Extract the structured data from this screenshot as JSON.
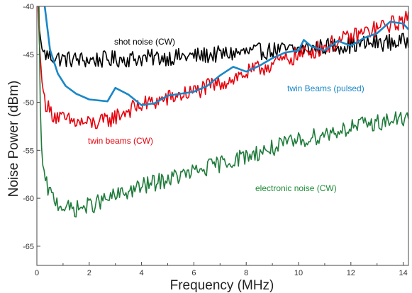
{
  "chart_data": {
    "type": "line",
    "xlabel": "Frequency (MHz)",
    "ylabel": "Noise Power (dBm)",
    "xlim": [
      0,
      14.2
    ],
    "ylim": [
      -67,
      -40
    ],
    "x_ticks": [
      0,
      2,
      4,
      6,
      8,
      10,
      12,
      14
    ],
    "y_ticks": [
      -40,
      -45,
      -50,
      -55,
      -60,
      -65
    ],
    "grid": false,
    "legend": "none (inline labels)",
    "series": [
      {
        "name": "shot noise (CW)",
        "color": "#000000",
        "noise_amplitude_db": 0.9,
        "x": [
          0.05,
          0.1,
          0.2,
          0.3,
          0.5,
          1,
          2,
          3,
          4,
          5,
          6,
          7,
          8,
          9,
          10,
          11,
          12,
          13,
          14,
          14.2
        ],
        "y": [
          -40,
          -42.5,
          -44.5,
          -45,
          -45.2,
          -45.5,
          -45.6,
          -45.5,
          -45.4,
          -45.3,
          -45.2,
          -45,
          -44.8,
          -44.6,
          -44.5,
          -44.2,
          -44,
          -43.8,
          -43.7,
          -43.6
        ]
      },
      {
        "name": "twin beams (CW)",
        "color": "#e8000b",
        "noise_amplitude_db": 0.9,
        "x": [
          0.05,
          0.1,
          0.2,
          0.3,
          0.5,
          1,
          1.5,
          2,
          2.5,
          3,
          3.5,
          4,
          5,
          6,
          7,
          8,
          9,
          10,
          11,
          12,
          13,
          14,
          14.2
        ],
        "y": [
          -40,
          -44,
          -48,
          -49.8,
          -51,
          -51.8,
          -52.1,
          -52.2,
          -52.1,
          -51.5,
          -50.8,
          -50.3,
          -49.6,
          -48.9,
          -48,
          -47,
          -46,
          -45.1,
          -44.2,
          -43.2,
          -42.3,
          -41.5,
          -41.2
        ]
      },
      {
        "name": "twin Beams (pulsed)",
        "color": "#1a87c8",
        "noise_amplitude_db": 0,
        "x": [
          0.3,
          0.5,
          0.8,
          1.1,
          1.5,
          2.0,
          2.7,
          3.0,
          3.5,
          4.0,
          4.5,
          5.0,
          5.5,
          6.0,
          6.5,
          7.0,
          7.5,
          8.0,
          8.5,
          9.0,
          9.5,
          10.0,
          10.2,
          10.5,
          11.0,
          11.5,
          12.0,
          12.5,
          13.0,
          13.5,
          14.0,
          14.2
        ],
        "y": [
          -40,
          -44.5,
          -47,
          -48.3,
          -49.1,
          -49.7,
          -49.9,
          -48.5,
          -49.2,
          -50.3,
          -50.1,
          -49.3,
          -49.1,
          -48.9,
          -48.3,
          -47.2,
          -46.3,
          -46.8,
          -46.2,
          -45.4,
          -44.8,
          -44.6,
          -43.5,
          -44.2,
          -44.6,
          -43.6,
          -44.1,
          -43.3,
          -42.8,
          -41.6,
          -41.8,
          -42.4
        ]
      },
      {
        "name": "electronic noise (CW)",
        "color": "#1e7b3a",
        "noise_amplitude_db": 0.9,
        "x": [
          0.08,
          0.1,
          0.15,
          0.2,
          0.3,
          0.5,
          0.8,
          1.2,
          1.5,
          2,
          3,
          4,
          5,
          6,
          7,
          8,
          9,
          10,
          11,
          12,
          13,
          14,
          14.2
        ],
        "y": [
          -40,
          -47,
          -53,
          -56,
          -58.2,
          -59.5,
          -60.5,
          -61.1,
          -61.1,
          -60.8,
          -59.8,
          -58.8,
          -58,
          -57.3,
          -56.4,
          -55.6,
          -54.8,
          -54,
          -53.3,
          -52.6,
          -52.1,
          -51.7,
          -51.6
        ]
      }
    ]
  },
  "labels": {
    "shot": "shot noise (CW)",
    "twin_cw": "twin beams (CW)",
    "twin_pulsed": "twin Beams (pulsed)",
    "electronic": "electronic noise (CW)"
  }
}
